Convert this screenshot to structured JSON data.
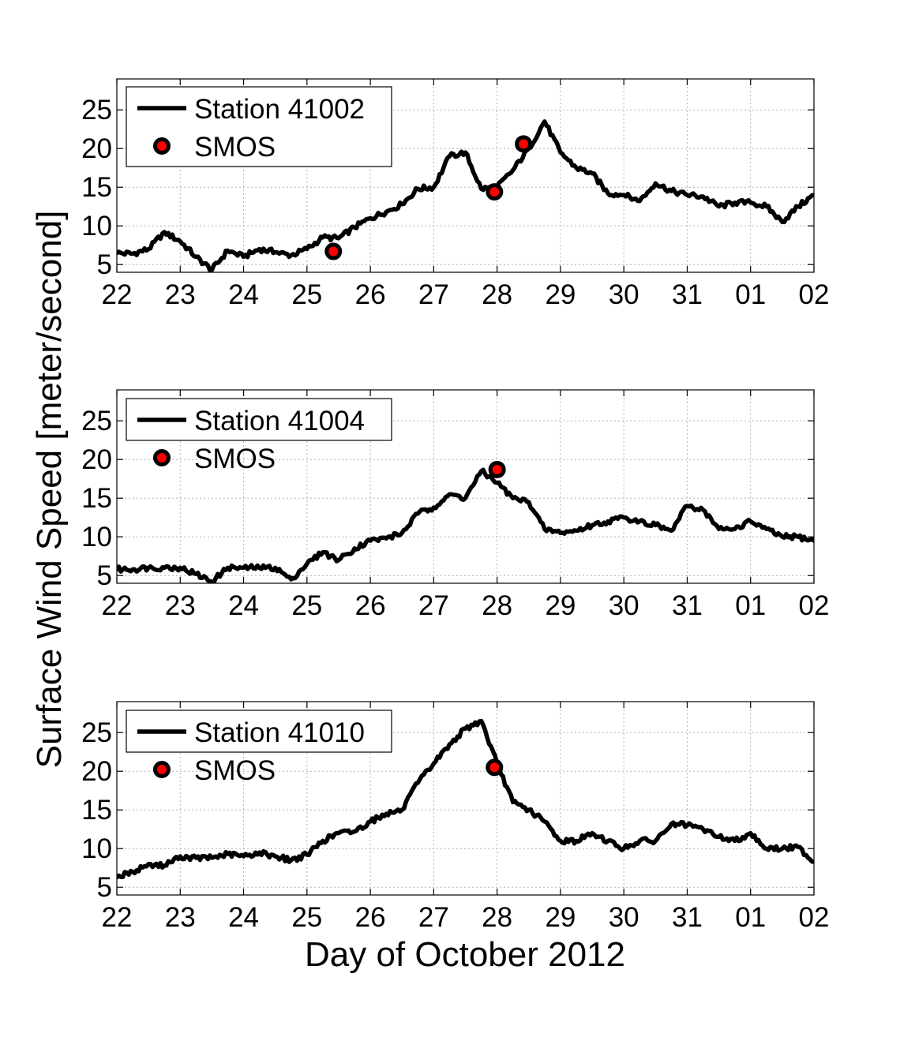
{
  "figure": {
    "ylabel": "Surface Wind Speed [meter/second]",
    "xlabel": "Day of October 2012"
  },
  "chart_data": [
    {
      "type": "line",
      "xlim": [
        "2012-10-22",
        "2012-11-02"
      ],
      "ylim": [
        4,
        29
      ],
      "xticks": [
        "22",
        "23",
        "24",
        "25",
        "26",
        "27",
        "28",
        "29",
        "30",
        "31",
        "01",
        "02"
      ],
      "yticks": [
        5,
        10,
        15,
        20,
        25
      ],
      "grid": true,
      "legend": "top-left",
      "series": [
        {
          "name": "Station 41002",
          "kind": "line",
          "color": "#000000",
          "x": [
            "2012-10-22T00:00",
            "2012-10-22T06:00",
            "2012-10-22T12:00",
            "2012-10-22T18:00",
            "2012-10-23T00:00",
            "2012-10-23T06:00",
            "2012-10-23T12:00",
            "2012-10-23T18:00",
            "2012-10-24T00:00",
            "2012-10-24T06:00",
            "2012-10-24T12:00",
            "2012-10-24T18:00",
            "2012-10-25T00:00",
            "2012-10-25T06:00",
            "2012-10-25T12:00",
            "2012-10-25T18:00",
            "2012-10-26T00:00",
            "2012-10-26T06:00",
            "2012-10-26T12:00",
            "2012-10-26T18:00",
            "2012-10-27T00:00",
            "2012-10-27T06:00",
            "2012-10-27T12:00",
            "2012-10-27T18:00",
            "2012-10-28T00:00",
            "2012-10-28T06:00",
            "2012-10-28T12:00",
            "2012-10-28T18:00",
            "2012-10-29T00:00",
            "2012-10-29T06:00",
            "2012-10-29T12:00",
            "2012-10-29T18:00",
            "2012-10-30T00:00",
            "2012-10-30T06:00",
            "2012-10-30T12:00",
            "2012-10-30T18:00",
            "2012-10-31T00:00",
            "2012-10-31T06:00",
            "2012-10-31T12:00",
            "2012-10-31T18:00",
            "2012-11-01T00:00",
            "2012-11-01T06:00",
            "2012-11-01T12:00",
            "2012-11-01T18:00",
            "2012-11-02T00:00"
          ],
          "y": [
            6.5,
            6.4,
            7.0,
            9.2,
            8.0,
            6.0,
            4.3,
            6.8,
            6.0,
            7.0,
            6.6,
            6.2,
            7.0,
            8.5,
            8.4,
            9.8,
            11.0,
            11.8,
            12.8,
            14.8,
            15.0,
            19.0,
            19.5,
            14.8,
            15.0,
            17.2,
            20.0,
            23.5,
            19.5,
            17.5,
            16.8,
            14.2,
            14.0,
            13.2,
            15.5,
            14.5,
            14.0,
            13.8,
            12.5,
            13.0,
            13.0,
            12.5,
            10.5,
            12.5,
            14.0
          ]
        },
        {
          "name": "SMOS",
          "kind": "marker",
          "color": "#ff0000",
          "x": [
            "2012-10-25T10:00",
            "2012-10-27T23:00",
            "2012-10-28T10:00"
          ],
          "y": [
            6.7,
            14.4,
            20.6
          ]
        }
      ]
    },
    {
      "type": "line",
      "xlim": [
        "2012-10-22",
        "2012-11-02"
      ],
      "ylim": [
        4,
        29
      ],
      "xticks": [
        "22",
        "23",
        "24",
        "25",
        "26",
        "27",
        "28",
        "29",
        "30",
        "31",
        "01",
        "02"
      ],
      "yticks": [
        5,
        10,
        15,
        20,
        25
      ],
      "grid": true,
      "legend": "top-left",
      "series": [
        {
          "name": "Station 41004",
          "kind": "line",
          "color": "#000000",
          "x": [
            "2012-10-22T00:00",
            "2012-10-22T06:00",
            "2012-10-22T12:00",
            "2012-10-22T18:00",
            "2012-10-23T00:00",
            "2012-10-23T06:00",
            "2012-10-23T12:00",
            "2012-10-23T18:00",
            "2012-10-24T00:00",
            "2012-10-24T06:00",
            "2012-10-24T12:00",
            "2012-10-24T18:00",
            "2012-10-25T00:00",
            "2012-10-25T06:00",
            "2012-10-25T12:00",
            "2012-10-25T18:00",
            "2012-10-26T00:00",
            "2012-10-26T06:00",
            "2012-10-26T12:00",
            "2012-10-26T18:00",
            "2012-10-27T00:00",
            "2012-10-27T06:00",
            "2012-10-27T12:00",
            "2012-10-27T18:00",
            "2012-10-28T00:00",
            "2012-10-28T06:00",
            "2012-10-28T12:00",
            "2012-10-28T18:00",
            "2012-10-29T00:00",
            "2012-10-29T06:00",
            "2012-10-29T12:00",
            "2012-10-29T18:00",
            "2012-10-30T00:00",
            "2012-10-30T06:00",
            "2012-10-30T12:00",
            "2012-10-30T18:00",
            "2012-10-31T00:00",
            "2012-10-31T06:00",
            "2012-10-31T12:00",
            "2012-10-31T18:00",
            "2012-11-01T00:00",
            "2012-11-01T06:00",
            "2012-11-01T12:00",
            "2012-11-01T18:00",
            "2012-11-02T00:00"
          ],
          "y": [
            5.8,
            5.8,
            6.0,
            6.0,
            6.0,
            5.2,
            4.2,
            6.0,
            6.0,
            6.0,
            6.0,
            4.5,
            6.5,
            8.0,
            7.0,
            8.5,
            9.5,
            9.8,
            10.5,
            13.0,
            13.8,
            15.5,
            15.0,
            18.5,
            17.0,
            15.0,
            14.5,
            11.0,
            10.5,
            10.8,
            11.5,
            12.0,
            12.5,
            12.0,
            11.5,
            10.8,
            14.0,
            13.5,
            11.0,
            11.0,
            12.0,
            11.0,
            10.0,
            10.0,
            9.5
          ]
        },
        {
          "name": "SMOS",
          "kind": "marker",
          "color": "#ff0000",
          "x": [
            "2012-10-28T00:00"
          ],
          "y": [
            18.7
          ]
        }
      ]
    },
    {
      "type": "line",
      "xlim": [
        "2012-10-22",
        "2012-11-02"
      ],
      "ylim": [
        4,
        29
      ],
      "xticks": [
        "22",
        "23",
        "24",
        "25",
        "26",
        "27",
        "28",
        "29",
        "30",
        "31",
        "01",
        "02"
      ],
      "yticks": [
        5,
        10,
        15,
        20,
        25
      ],
      "grid": true,
      "legend": "top-left",
      "series": [
        {
          "name": "Station 41010",
          "kind": "line",
          "color": "#000000",
          "x": [
            "2012-10-22T00:00",
            "2012-10-22T06:00",
            "2012-10-22T12:00",
            "2012-10-22T18:00",
            "2012-10-23T00:00",
            "2012-10-23T06:00",
            "2012-10-23T12:00",
            "2012-10-23T18:00",
            "2012-10-24T00:00",
            "2012-10-24T06:00",
            "2012-10-24T12:00",
            "2012-10-24T18:00",
            "2012-10-25T00:00",
            "2012-10-25T06:00",
            "2012-10-25T12:00",
            "2012-10-25T18:00",
            "2012-10-26T00:00",
            "2012-10-26T06:00",
            "2012-10-26T12:00",
            "2012-10-26T18:00",
            "2012-10-27T00:00",
            "2012-10-27T06:00",
            "2012-10-27T12:00",
            "2012-10-27T18:00",
            "2012-10-28T00:00",
            "2012-10-28T06:00",
            "2012-10-28T12:00",
            "2012-10-28T18:00",
            "2012-10-29T00:00",
            "2012-10-29T06:00",
            "2012-10-29T12:00",
            "2012-10-29T18:00",
            "2012-10-30T00:00",
            "2012-10-30T06:00",
            "2012-10-30T12:00",
            "2012-10-30T18:00",
            "2012-10-31T00:00",
            "2012-10-31T06:00",
            "2012-10-31T12:00",
            "2012-10-31T18:00",
            "2012-11-01T00:00",
            "2012-11-01T06:00",
            "2012-11-01T12:00",
            "2012-11-01T18:00",
            "2012-11-02T00:00"
          ],
          "y": [
            6.3,
            7.0,
            8.0,
            7.8,
            9.0,
            8.8,
            8.8,
            9.3,
            9.0,
            9.5,
            9.0,
            8.5,
            9.2,
            11.0,
            12.0,
            12.2,
            13.5,
            14.5,
            15.0,
            18.5,
            21.0,
            23.5,
            25.5,
            26.5,
            21.0,
            16.0,
            15.0,
            13.5,
            11.0,
            11.0,
            12.0,
            11.0,
            10.0,
            11.0,
            11.0,
            13.2,
            13.0,
            12.5,
            11.5,
            11.0,
            12.0,
            10.0,
            10.0,
            10.2,
            8.3
          ]
        },
        {
          "name": "SMOS",
          "kind": "marker",
          "color": "#ff0000",
          "x": [
            "2012-10-27T23:00"
          ],
          "y": [
            20.5
          ]
        }
      ]
    }
  ]
}
